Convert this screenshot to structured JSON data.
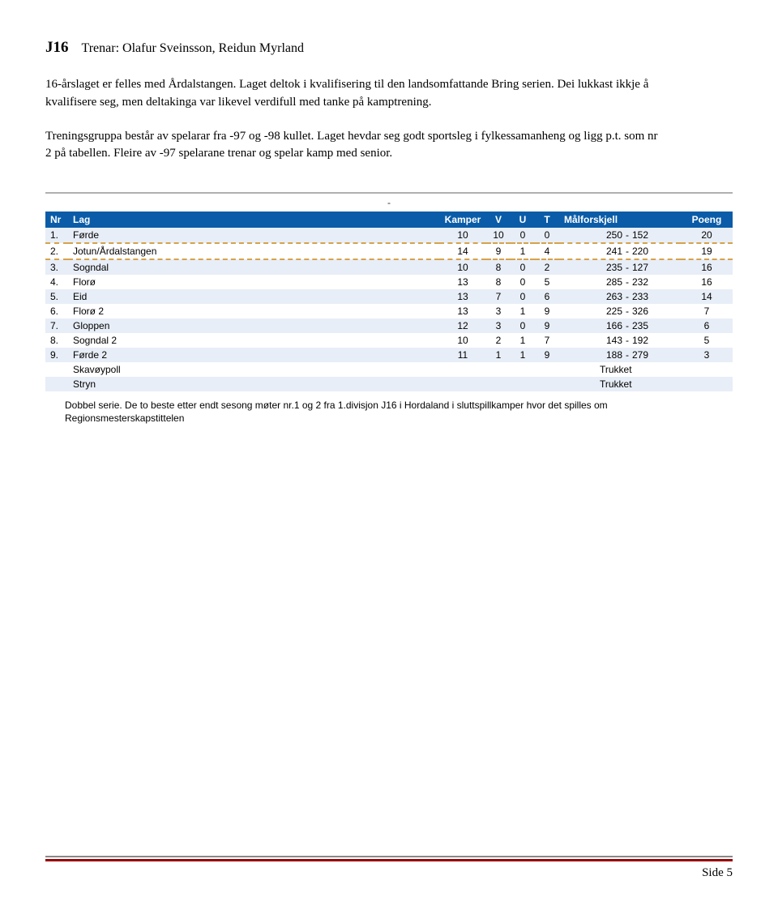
{
  "heading": {
    "code": "J16",
    "trainer_label": "Trenar:",
    "trainer_names": "Olafur Sveinsson, Reidun Myrland"
  },
  "paragraphs": {
    "p1": "16-årslaget er felles med Årdalstangen. Laget deltok i kvalifisering til den landsomfattande Bring serien. Dei lukkast ikkje å kvalifisere seg, men deltakinga var likevel verdifull med tanke på kamptrening.",
    "p2": "Treningsgruppa består av spelarar fra -97 og -98 kullet. Laget hevdar seg godt sportsleg i fylkessamanheng og ligg p.t. som nr 2 på tabellen. Fleire av -97 spelarane trenar og spelar kamp med senior."
  },
  "table": {
    "title_dash": "-",
    "header_bg": "#0a5ca8",
    "header_fg": "#ffffff",
    "stripe_bg": "#e8eef7",
    "highlight_border": "#d7a24a",
    "columns": {
      "nr": "Nr",
      "team": "Lag",
      "games": "Kamper",
      "v": "V",
      "u": "U",
      "t": "T",
      "diff": "Målforskjell",
      "pts": "Poeng"
    },
    "rows": [
      {
        "nr": "1.",
        "team": "Førde",
        "games": "10",
        "v": "10",
        "u": "0",
        "t": "0",
        "gf": "250",
        "ga": "152",
        "pts": "20",
        "striped": true
      },
      {
        "nr": "2.",
        "team": "Jotun/Årdalstangen",
        "games": "14",
        "v": "9",
        "u": "1",
        "t": "4",
        "gf": "241",
        "ga": "220",
        "pts": "19",
        "highlight": true
      },
      {
        "nr": "3.",
        "team": "Sogndal",
        "games": "10",
        "v": "8",
        "u": "0",
        "t": "2",
        "gf": "235",
        "ga": "127",
        "pts": "16",
        "striped": true
      },
      {
        "nr": "4.",
        "team": "Florø",
        "games": "13",
        "v": "8",
        "u": "0",
        "t": "5",
        "gf": "285",
        "ga": "232",
        "pts": "16"
      },
      {
        "nr": "5.",
        "team": "Eid",
        "games": "13",
        "v": "7",
        "u": "0",
        "t": "6",
        "gf": "263",
        "ga": "233",
        "pts": "14",
        "striped": true
      },
      {
        "nr": "6.",
        "team": "Florø 2",
        "games": "13",
        "v": "3",
        "u": "1",
        "t": "9",
        "gf": "225",
        "ga": "326",
        "pts": "7"
      },
      {
        "nr": "7.",
        "team": "Gloppen",
        "games": "12",
        "v": "3",
        "u": "0",
        "t": "9",
        "gf": "166",
        "ga": "235",
        "pts": "6",
        "striped": true
      },
      {
        "nr": "8.",
        "team": "Sogndal 2",
        "games": "10",
        "v": "2",
        "u": "1",
        "t": "7",
        "gf": "143",
        "ga": "192",
        "pts": "5"
      },
      {
        "nr": "9.",
        "team": "Førde 2",
        "games": "11",
        "v": "1",
        "u": "1",
        "t": "9",
        "gf": "188",
        "ga": "279",
        "pts": "3",
        "striped": true
      },
      {
        "nr": "",
        "team": "Skavøypoll",
        "status": "Trukket"
      },
      {
        "nr": "",
        "team": "Stryn",
        "status": "Trukket",
        "striped": true
      }
    ],
    "footnote": "Dobbel serie. De to beste etter endt sesong møter nr.1 og 2 fra 1.divisjon J16 i Hordaland i sluttspillkamper hvor det spilles om Regionsmesterskapstittelen"
  },
  "footer": {
    "page_label": "Side 5"
  }
}
